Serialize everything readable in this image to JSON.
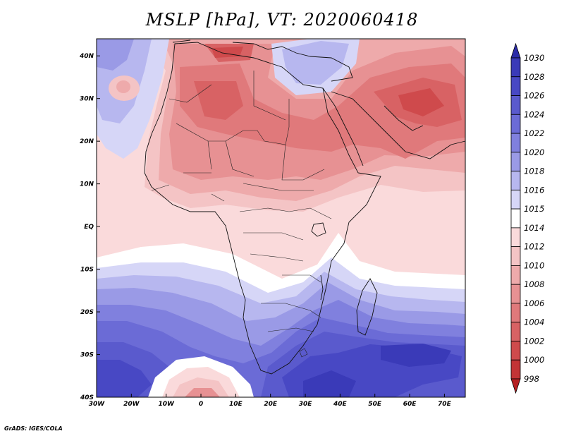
{
  "title": "MSLP [hPa], VT: 2020060418",
  "credit": "GrADS: IGES/COLA",
  "map": {
    "variable": "Mean sea level pressure",
    "units": "hPa",
    "valid_time": "2020060418",
    "lon_range": [
      -30,
      76
    ],
    "lat_range": [
      -40,
      44
    ],
    "lon_ticks": [
      {
        "value": -30,
        "label": "30W"
      },
      {
        "value": -20,
        "label": "20W"
      },
      {
        "value": -10,
        "label": "10W"
      },
      {
        "value": 0,
        "label": "0"
      },
      {
        "value": 10,
        "label": "10E"
      },
      {
        "value": 20,
        "label": "20E"
      },
      {
        "value": 30,
        "label": "30E"
      },
      {
        "value": 40,
        "label": "40E"
      },
      {
        "value": 50,
        "label": "50E"
      },
      {
        "value": 60,
        "label": "60E"
      },
      {
        "value": 70,
        "label": "70E"
      }
    ],
    "lat_ticks": [
      {
        "value": 40,
        "label": "40N"
      },
      {
        "value": 30,
        "label": "30N"
      },
      {
        "value": 20,
        "label": "20N"
      },
      {
        "value": 10,
        "label": "10N"
      },
      {
        "value": 0,
        "label": "EQ"
      },
      {
        "value": -10,
        "label": "10S"
      },
      {
        "value": -20,
        "label": "20S"
      },
      {
        "value": -30,
        "label": "30S"
      },
      {
        "value": -40,
        "label": "40S"
      }
    ]
  },
  "colorbar": {
    "levels": [
      "1030",
      "1028",
      "1026",
      "1024",
      "1022",
      "1020",
      "1018",
      "1016",
      "1015",
      "1014",
      "1012",
      "1010",
      "1008",
      "1006",
      "1004",
      "1002",
      "1000",
      "998"
    ],
    "colors": [
      "#2b2ba8",
      "#3a3ab8",
      "#4848c4",
      "#5a5acd",
      "#6b6bd6",
      "#8080de",
      "#9a9ae6",
      "#b7b7ef",
      "#d6d6f7",
      "#ffffff",
      "#fadadb",
      "#f4c4c5",
      "#eeaaab",
      "#e79193",
      "#e0797b",
      "#d86264",
      "#cf4a4c",
      "#c33436",
      "#b52022"
    ]
  }
}
